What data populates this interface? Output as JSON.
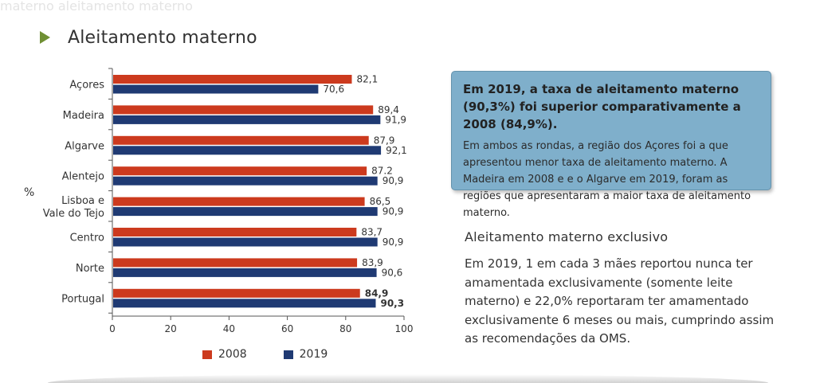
{
  "page": {
    "faded_header": "materno  aleitamento materno",
    "heading": "Aleitamento materno",
    "info_box": {
      "title": "Em 2019, a taxa de aleitamento materno (90,3%) foi superior comparativamente a 2008 (84,9%).",
      "body": "Em ambos as rondas, a região dos Açores foi a que apresentou menor taxa de aleitamento materno. A Madeira em 2008 e e o Algarve em 2019, foram as regiões que apresentaram a maior taxa de aleitamento materno."
    },
    "subheading": "Aleitamento materno exclusivo",
    "body": "Em 2019, 1 em cada 3 mães reportou nunca ter amamentada exclusivamente (somente leite materno) e 22,0% reportaram ter amamentado exclusivamente 6 meses ou mais, cumprindo assim as recomendações da OMS."
  },
  "colors": {
    "s2008": "#cc3a1e",
    "s2019": "#1f3a73",
    "accent": "#6f8f33",
    "box": "#7fafcb"
  },
  "chart_data": {
    "type": "bar",
    "orientation": "horizontal",
    "title": "Aleitamento materno",
    "ylabel": "%",
    "categories": [
      "Açores",
      "Madeira",
      "Algarve",
      "Alentejo",
      "Lisboa e\nVale do Tejo",
      "Centro",
      "Norte",
      "Portugal"
    ],
    "series": [
      {
        "name": "2008",
        "color": "#cc3a1e",
        "values": [
          82.1,
          89.4,
          87.9,
          87.2,
          86.5,
          83.7,
          83.9,
          84.9
        ],
        "labels": [
          "82,1",
          "89,4",
          "87,9",
          "87.2",
          "86,5",
          "83,7",
          "83,9",
          "84,9"
        ]
      },
      {
        "name": "2019",
        "color": "#1f3a73",
        "values": [
          70.6,
          91.9,
          92.1,
          90.9,
          90.9,
          90.9,
          90.6,
          90.3
        ],
        "labels": [
          "70,6",
          "91,9",
          "92,1",
          "90,9",
          "90,9",
          "90,9",
          "90,6",
          "90,3"
        ]
      }
    ],
    "bold_categories": [
      "Portugal"
    ],
    "xlim": [
      0,
      100
    ],
    "xticks": [
      0,
      20,
      40,
      60,
      80,
      100
    ],
    "xtick_labels": [
      "0",
      "20",
      "40",
      "60",
      "80",
      "100"
    ],
    "legend": [
      "2008",
      "2019"
    ],
    "legend_position": "bottom",
    "grid": false
  }
}
